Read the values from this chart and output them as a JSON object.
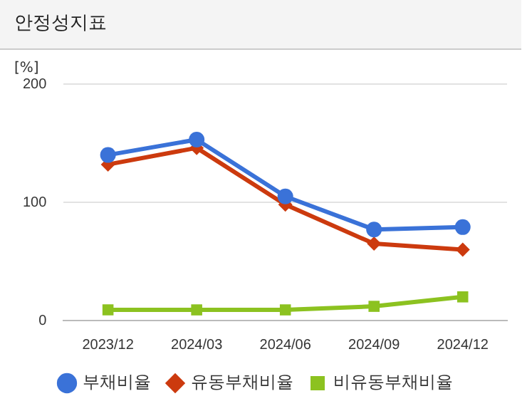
{
  "chart_data": {
    "type": "line",
    "title": "안정성지표",
    "ylabel": "[%]",
    "categories": [
      "2023/12",
      "2024/03",
      "2024/06",
      "2024/09",
      "2024/12"
    ],
    "series": [
      {
        "name": "부채비율",
        "color": "#3a72d8",
        "marker": "circle",
        "values": [
          140,
          153,
          105,
          77,
          79
        ]
      },
      {
        "name": "유동부채비율",
        "color": "#cc3a0e",
        "marker": "diamond",
        "values": [
          132,
          146,
          98,
          65,
          60
        ]
      },
      {
        "name": "비유동부채비율",
        "color": "#8cc220",
        "marker": "square",
        "values": [
          9,
          9,
          9,
          12,
          20
        ]
      }
    ],
    "ylim": [
      0,
      200
    ],
    "yticks": [
      0,
      100,
      200
    ],
    "grid": "y",
    "legend": "bottom"
  }
}
